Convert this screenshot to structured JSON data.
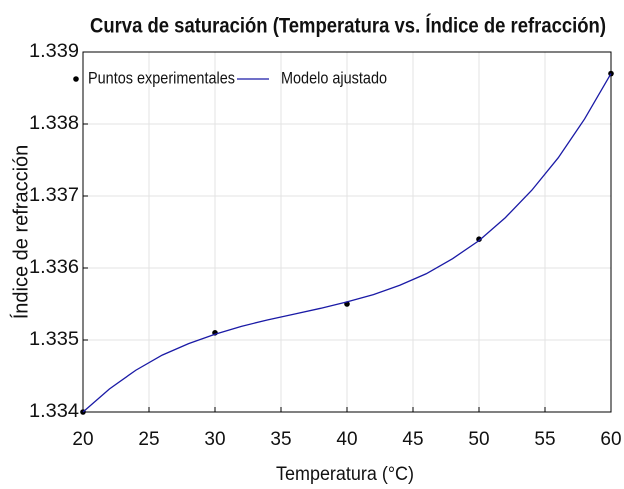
{
  "chart_data": {
    "type": "line",
    "title": "Curva de saturación (Temperatura vs. Índice de refracción)",
    "x_label": "Temperatura (°C)",
    "y_label": "Índice de refracción",
    "xlim": [
      20,
      60
    ],
    "xticks": [
      20,
      25,
      30,
      35,
      40,
      45,
      50,
      55,
      60
    ],
    "ylim": [
      1.334,
      1.339
    ],
    "yticks": [
      1.334,
      1.335,
      1.336,
      1.337,
      1.338,
      1.339
    ],
    "grid": true,
    "legend": "upper left",
    "series": [
      {
        "name": "Puntos experimentales",
        "type": "scatter",
        "color": "#000000",
        "x": [
          20,
          30,
          40,
          50,
          60
        ],
        "values": [
          1.334,
          1.3351,
          1.3355,
          1.3364,
          1.3387
        ]
      },
      {
        "name": "Modelo ajustado",
        "type": "line",
        "color": "#1a1aa6",
        "x": [
          20,
          22,
          24,
          26,
          28,
          30,
          32,
          34,
          36,
          38,
          40,
          42,
          44,
          46,
          48,
          50,
          52,
          54,
          56,
          58,
          60
        ],
        "values": [
          1.334,
          1.33432,
          1.33458,
          1.33479,
          1.33495,
          1.33508,
          1.33519,
          1.33528,
          1.33536,
          1.33544,
          1.33553,
          1.33563,
          1.33576,
          1.33592,
          1.33613,
          1.33638,
          1.3367,
          1.33708,
          1.33753,
          1.33807,
          1.3387
        ]
      }
    ]
  }
}
